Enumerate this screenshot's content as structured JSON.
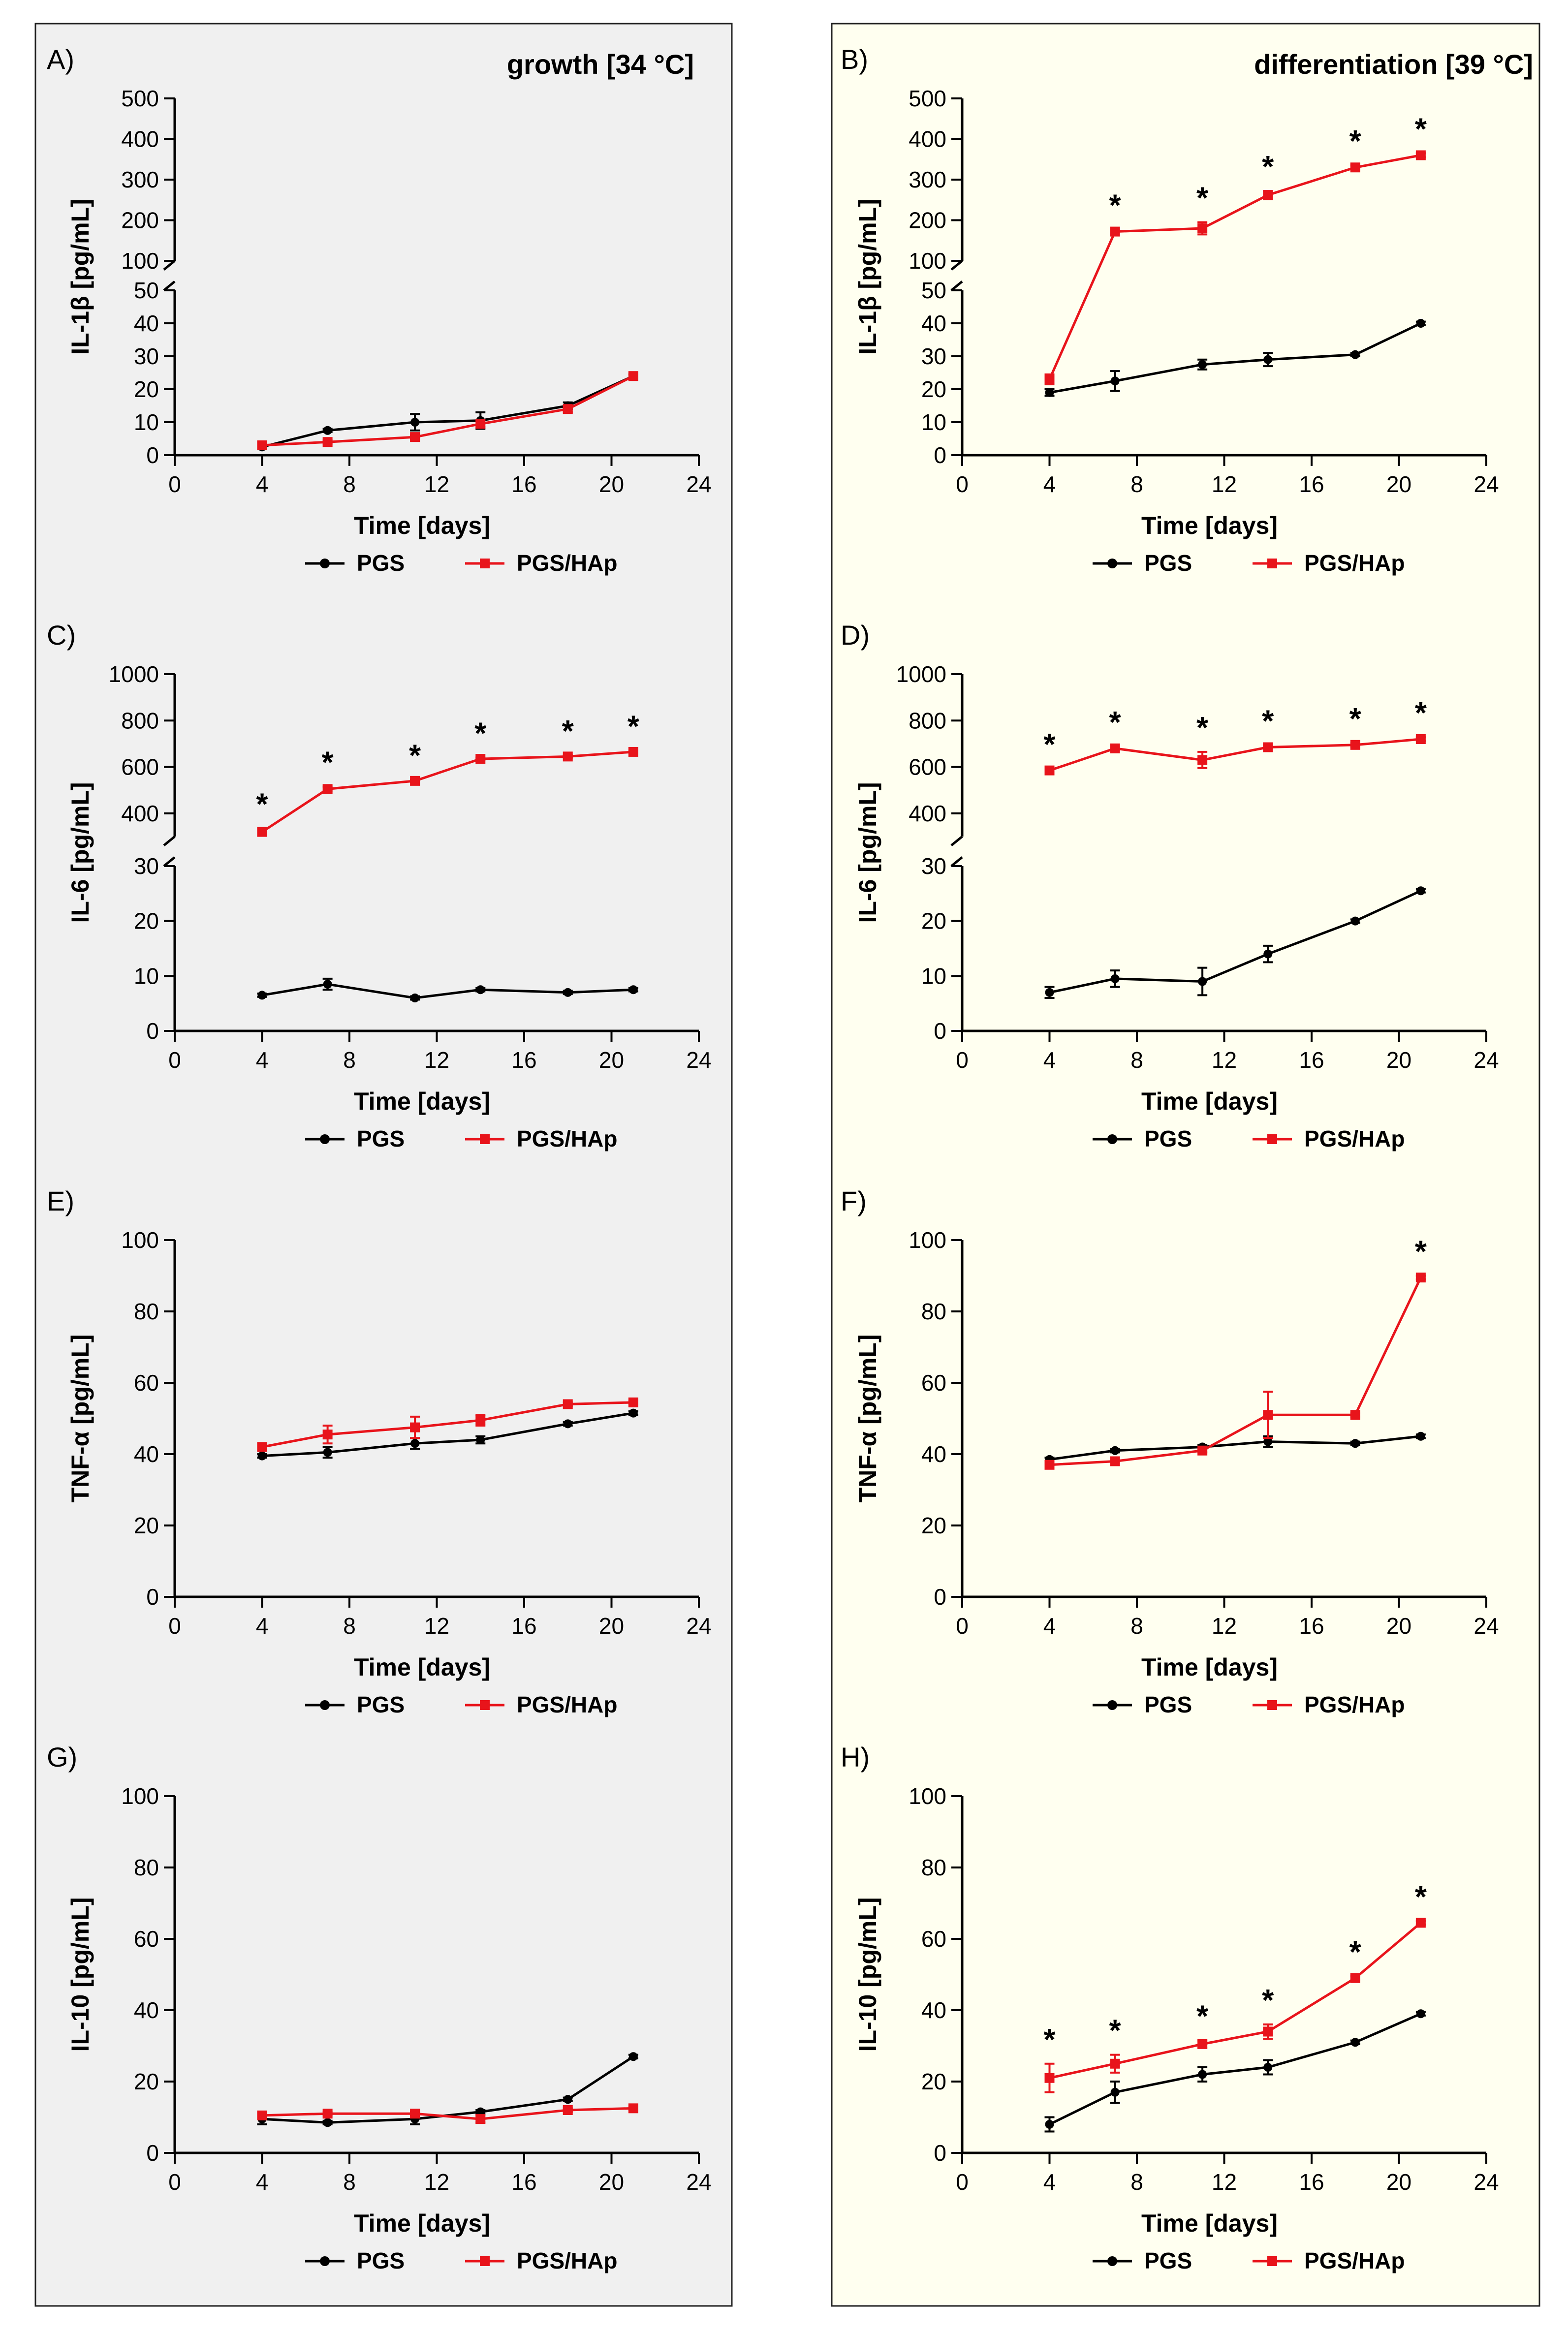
{
  "conditions": {
    "growth": "growth [34 °C]",
    "differentiation": "differentiation [39 °C]"
  },
  "colors": {
    "PGS": "#000000",
    "PGS/HAp": "#e8141b",
    "growth_bg": "#f0f0f0",
    "diff_bg": "#fffff0"
  },
  "legend": [
    "PGS",
    "PGS/HAp"
  ],
  "chart_data": [
    {
      "panel": "A)",
      "type": "line",
      "ylabel": "IL-1β [pg/mL]",
      "xlabel": "Time [days]",
      "x_ticks": [
        "0",
        "4",
        "8",
        "12",
        "16",
        "20",
        "24"
      ],
      "xlim": [
        0,
        24
      ],
      "broken_axis": true,
      "lower_range": [
        0,
        50
      ],
      "lower_ticks": [
        "0",
        "10",
        "20",
        "30",
        "40",
        "50"
      ],
      "upper_range": [
        100,
        500
      ],
      "upper_ticks": [
        "100",
        "200",
        "300",
        "400",
        "500"
      ],
      "series": [
        {
          "name": "PGS",
          "x": [
            4,
            7,
            11,
            14,
            18,
            21
          ],
          "y": [
            2.5,
            7.5,
            10,
            10.5,
            15,
            24
          ],
          "err": [
            0.5,
            0.5,
            2.5,
            2.5,
            1,
            0.5
          ]
        },
        {
          "name": "PGS/HAp",
          "x": [
            4,
            7,
            11,
            14,
            18,
            21
          ],
          "y": [
            3,
            4,
            5.5,
            9.5,
            14,
            24
          ],
          "err": [
            0.5,
            0.5,
            0.5,
            1,
            1,
            0.5
          ]
        }
      ],
      "significance": []
    },
    {
      "panel": "B)",
      "type": "line",
      "ylabel": "IL-1β [pg/mL]",
      "xlabel": "Time [days]",
      "x_ticks": [
        "0",
        "4",
        "8",
        "12",
        "16",
        "20",
        "24"
      ],
      "xlim": [
        0,
        24
      ],
      "broken_axis": true,
      "lower_range": [
        0,
        50
      ],
      "lower_ticks": [
        "0",
        "10",
        "20",
        "30",
        "40",
        "50"
      ],
      "upper_range": [
        100,
        500
      ],
      "upper_ticks": [
        "100",
        "200",
        "300",
        "400",
        "500"
      ],
      "series": [
        {
          "name": "PGS",
          "x": [
            4,
            7,
            11,
            14,
            18,
            21
          ],
          "y": [
            19,
            22.5,
            27.5,
            29,
            30.5,
            40
          ],
          "err": [
            1,
            3,
            1.5,
            2,
            0.5,
            0.5
          ]
        },
        {
          "name": "PGS/HAp",
          "x": [
            4,
            7,
            11,
            14,
            18,
            21
          ],
          "y": [
            23,
            172,
            180,
            262,
            330,
            360
          ],
          "err": [
            1.5,
            5,
            15,
            10,
            5,
            5
          ]
        }
      ],
      "significance": [
        "*",
        "*",
        "*",
        "*",
        "*"
      ],
      "significance_x": [
        7,
        11,
        14,
        18,
        21
      ]
    },
    {
      "panel": "C)",
      "type": "line",
      "ylabel": "IL-6 [pg/mL]",
      "xlabel": "Time [days]",
      "x_ticks": [
        "0",
        "4",
        "8",
        "12",
        "16",
        "20",
        "24"
      ],
      "xlim": [
        0,
        24
      ],
      "broken_axis": true,
      "lower_range": [
        0,
        30
      ],
      "lower_ticks": [
        "0",
        "10",
        "20",
        "30"
      ],
      "upper_range": [
        300,
        1000
      ],
      "upper_ticks": [
        "400",
        "600",
        "800",
        "1000"
      ],
      "series": [
        {
          "name": "PGS",
          "x": [
            4,
            7,
            11,
            14,
            18,
            21
          ],
          "y": [
            6.5,
            8.5,
            6,
            7.5,
            7,
            7.5
          ],
          "err": [
            0.3,
            1,
            0.3,
            0.3,
            0.3,
            0.3
          ]
        },
        {
          "name": "PGS/HAp",
          "x": [
            4,
            7,
            11,
            14,
            18,
            21
          ],
          "y": [
            320,
            505,
            540,
            635,
            645,
            665
          ],
          "err": [
            15,
            10,
            5,
            5,
            5,
            5
          ]
        }
      ],
      "significance": [
        "*",
        "*",
        "*",
        "*",
        "*",
        "*"
      ],
      "significance_x": [
        4,
        7,
        11,
        14,
        18,
        21
      ]
    },
    {
      "panel": "D)",
      "type": "line",
      "ylabel": "IL-6 [pg/mL]",
      "xlabel": "Time [days]",
      "x_ticks": [
        "0",
        "4",
        "8",
        "12",
        "16",
        "20",
        "24"
      ],
      "xlim": [
        0,
        24
      ],
      "broken_axis": true,
      "lower_range": [
        0,
        30
      ],
      "lower_ticks": [
        "0",
        "10",
        "20",
        "30"
      ],
      "upper_range": [
        300,
        1000
      ],
      "upper_ticks": [
        "400",
        "600",
        "800",
        "1000"
      ],
      "series": [
        {
          "name": "PGS",
          "x": [
            4,
            7,
            11,
            14,
            18,
            21
          ],
          "y": [
            7,
            9.5,
            9,
            14,
            20,
            25.5
          ],
          "err": [
            1,
            1.5,
            2.5,
            1.5,
            0.3,
            0.3
          ]
        },
        {
          "name": "PGS/HAp",
          "x": [
            4,
            7,
            11,
            14,
            18,
            21
          ],
          "y": [
            585,
            680,
            630,
            685,
            695,
            720
          ],
          "err": [
            8,
            8,
            35,
            8,
            8,
            8
          ]
        }
      ],
      "significance": [
        "*",
        "*",
        "*",
        "*",
        "*",
        "*"
      ],
      "significance_x": [
        4,
        7,
        11,
        14,
        18,
        21
      ]
    },
    {
      "panel": "E)",
      "type": "line",
      "ylabel": "TNF-α [pg/mL]",
      "xlabel": "Time [days]",
      "x_ticks": [
        "0",
        "4",
        "8",
        "12",
        "16",
        "20",
        "24"
      ],
      "xlim": [
        0,
        24
      ],
      "broken_axis": false,
      "ylim": [
        0,
        100
      ],
      "y_ticks": [
        "0",
        "20",
        "40",
        "60",
        "80",
        "100"
      ],
      "series": [
        {
          "name": "PGS",
          "x": [
            4,
            7,
            11,
            14,
            18,
            21
          ],
          "y": [
            39.5,
            40.5,
            43,
            44,
            48.5,
            51.5
          ],
          "err": [
            0.5,
            1.5,
            1.5,
            1,
            0.5,
            0.5
          ]
        },
        {
          "name": "PGS/HAp",
          "x": [
            4,
            7,
            11,
            14,
            18,
            21
          ],
          "y": [
            42,
            45.5,
            47.5,
            49.5,
            54,
            54.5
          ],
          "err": [
            1,
            2.5,
            3,
            1.5,
            0.5,
            0.5
          ]
        }
      ],
      "significance": []
    },
    {
      "panel": "F)",
      "type": "line",
      "ylabel": "TNF-α [pg/mL]",
      "xlabel": "Time [days]",
      "x_ticks": [
        "0",
        "4",
        "8",
        "12",
        "16",
        "20",
        "24"
      ],
      "xlim": [
        0,
        24
      ],
      "broken_axis": false,
      "ylim": [
        0,
        100
      ],
      "y_ticks": [
        "0",
        "20",
        "40",
        "60",
        "80",
        "100"
      ],
      "series": [
        {
          "name": "PGS",
          "x": [
            4,
            7,
            11,
            14,
            18,
            21
          ],
          "y": [
            38.5,
            41,
            42,
            43.5,
            43,
            45
          ],
          "err": [
            0.5,
            0.5,
            0.5,
            1.5,
            0.5,
            0.5
          ]
        },
        {
          "name": "PGS/HAp",
          "x": [
            4,
            7,
            11,
            14,
            18,
            21
          ],
          "y": [
            37,
            38,
            41,
            51,
            51,
            89.5
          ],
          "err": [
            0.5,
            0.5,
            0.5,
            6.5,
            0.5,
            0.5
          ]
        }
      ],
      "significance": [
        "*"
      ],
      "significance_x": [
        21
      ]
    },
    {
      "panel": "G)",
      "type": "line",
      "ylabel": "IL-10 [pg/mL]",
      "xlabel": "Time [days]",
      "x_ticks": [
        "0",
        "4",
        "8",
        "12",
        "16",
        "20",
        "24"
      ],
      "xlim": [
        0,
        24
      ],
      "broken_axis": false,
      "ylim": [
        0,
        100
      ],
      "y_ticks": [
        "0",
        "20",
        "40",
        "60",
        "80",
        "100"
      ],
      "series": [
        {
          "name": "PGS",
          "x": [
            4,
            7,
            11,
            14,
            18,
            21
          ],
          "y": [
            9.5,
            8.5,
            9.5,
            11.5,
            15,
            27
          ],
          "err": [
            1.5,
            0.5,
            1.5,
            0.5,
            0.5,
            0.5
          ]
        },
        {
          "name": "PGS/HAp",
          "x": [
            4,
            7,
            11,
            14,
            18,
            21
          ],
          "y": [
            10.5,
            11,
            11,
            9.5,
            12,
            12.5
          ],
          "err": [
            0.5,
            0.5,
            0.5,
            1,
            0.5,
            0.5
          ]
        }
      ],
      "significance": []
    },
    {
      "panel": "H)",
      "type": "line",
      "ylabel": "IL-10 [pg/mL]",
      "xlabel": "Time [days]",
      "x_ticks": [
        "0",
        "4",
        "8",
        "12",
        "16",
        "20",
        "24"
      ],
      "xlim": [
        0,
        24
      ],
      "broken_axis": false,
      "ylim": [
        0,
        100
      ],
      "y_ticks": [
        "0",
        "20",
        "40",
        "60",
        "80",
        "100"
      ],
      "series": [
        {
          "name": "PGS",
          "x": [
            4,
            7,
            11,
            14,
            18,
            21
          ],
          "y": [
            8,
            17,
            22,
            24,
            31,
            39
          ],
          "err": [
            2,
            3,
            2,
            2,
            0.5,
            0.5
          ]
        },
        {
          "name": "PGS/HAp",
          "x": [
            4,
            7,
            11,
            14,
            18,
            21
          ],
          "y": [
            21,
            25,
            30.5,
            34,
            49,
            64.5
          ],
          "err": [
            4,
            2.5,
            1,
            2,
            0.5,
            0.5
          ]
        }
      ],
      "significance": [
        "*",
        "*",
        "*",
        "*",
        "*",
        "*"
      ],
      "significance_x": [
        4,
        7,
        11,
        14,
        18,
        21
      ]
    }
  ]
}
